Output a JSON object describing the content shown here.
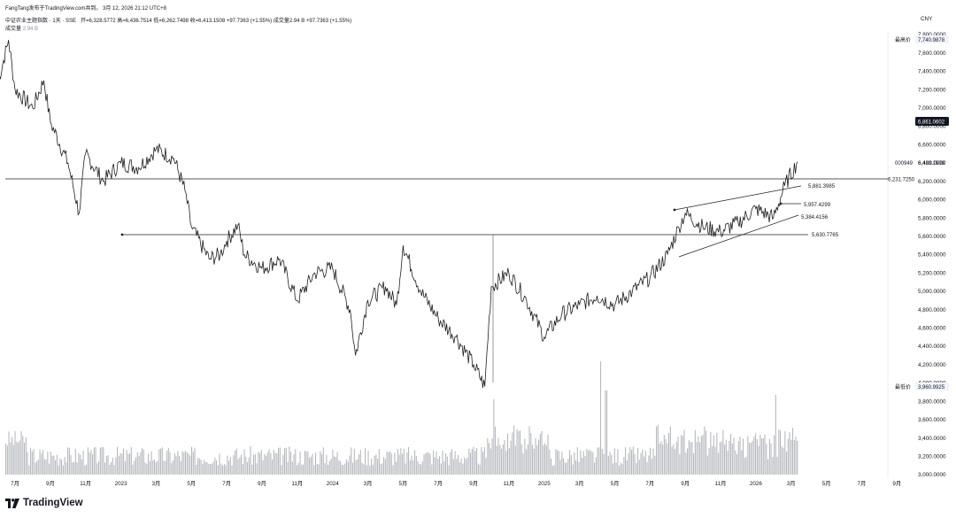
{
  "header": {
    "author_line": "FangTang发布于TradingView.com共到。 3月 12, 2026 21:12 UTC+8",
    "symbol_line": "中证农业主题指数 · 1天 · SSE",
    "ohlc_line": "开=6,328.5772  高=6,436.7514  低=6,262.7498  收=6,413.1508  +97.7363 (+1.55%)  成交量2.94 B  +97.7363 (+1.55%)",
    "volume_label": "成交量",
    "volume_value": "2.94 B"
  },
  "axis": {
    "currency": "CNY",
    "highest_label": "最高价",
    "highest_value": "7,740.9878",
    "lowest_label": "最低价",
    "lowest_value": "3,960.9925",
    "symbol_code": "000949",
    "last_price": "6,413.1508",
    "cursor_value": "6,861.0602"
  },
  "annotations": {
    "hline_upper": "6,231.7250",
    "hline_lower": "5,630.7765",
    "channel_top": "5,881.3985",
    "channel_mid": "5,957.4299",
    "channel_bottom": "5,384.4156"
  },
  "footer": {
    "brand": "TradingView",
    "logo_icon": "tradingview-logo-icon"
  },
  "chart_data": {
    "type": "line",
    "title": "中证农业主题指数",
    "yticks": [
      "3,000.0000",
      "3,200.0000",
      "3,400.0000",
      "3,600.0000",
      "3,800.0000",
      "4,000.0000",
      "4,200.0000",
      "4,400.0000",
      "4,600.0000",
      "4,800.0000",
      "5,000.0000",
      "5,200.0000",
      "5,400.0000",
      "5,600.0000",
      "5,800.0000",
      "6,000.0000",
      "6,200.0000",
      "6,400.0000",
      "6,600.0000",
      "6,800.0000",
      "7,000.0000",
      "7,200.0000",
      "7,400.0000",
      "7,600.0000",
      "7,800.0000"
    ],
    "xticks": [
      "7月",
      "9月",
      "11月",
      "2023",
      "3月",
      "5月",
      "7月",
      "9月",
      "11月",
      "2024",
      "3月",
      "5月",
      "7月",
      "9月",
      "11月",
      "2025",
      "3月",
      "5月",
      "7月",
      "9月",
      "11月",
      "2026",
      "3月",
      "5月",
      "7月",
      "9月"
    ],
    "ylim": [
      3000,
      7800
    ],
    "price_series": {
      "name": "000949",
      "points": [
        [
          "2022-06",
          7250
        ],
        [
          "2022-06-20",
          7740
        ],
        [
          "2022-07",
          7200
        ],
        [
          "2022-08",
          7000
        ],
        [
          "2022-08-20",
          7300
        ],
        [
          "2022-09",
          6850
        ],
        [
          "2022-10",
          6400
        ],
        [
          "2022-10-20",
          5850
        ],
        [
          "2022-11",
          6500
        ],
        [
          "2022-12",
          6200
        ],
        [
          "2023-01",
          6400
        ],
        [
          "2023-02",
          6350
        ],
        [
          "2023-03",
          6550
        ],
        [
          "2023-04",
          6450
        ],
        [
          "2023-04-20",
          6100
        ],
        [
          "2023-05",
          5700
        ],
        [
          "2023-06",
          5350
        ],
        [
          "2023-06-20",
          5400
        ],
        [
          "2023-07",
          5550
        ],
        [
          "2023-07-20",
          5720
        ],
        [
          "2023-08",
          5400
        ],
        [
          "2023-09",
          5250
        ],
        [
          "2023-10",
          5350
        ],
        [
          "2023-11",
          4900
        ],
        [
          "2023-12",
          5200
        ],
        [
          "2024-01",
          5250
        ],
        [
          "2024-02",
          4800
        ],
        [
          "2024-02-10",
          4300
        ],
        [
          "2024-03",
          4900
        ],
        [
          "2024-04",
          5050
        ],
        [
          "2024-04-20",
          4850
        ],
        [
          "2024-05",
          5500
        ],
        [
          "2024-06",
          5000
        ],
        [
          "2024-07",
          4700
        ],
        [
          "2024-08",
          4500
        ],
        [
          "2024-09",
          4200
        ],
        [
          "2024-09-20",
          3960
        ],
        [
          "2024-10",
          5050
        ],
        [
          "2024-11",
          5200
        ],
        [
          "2024-12",
          4900
        ],
        [
          "2025-01",
          4500
        ],
        [
          "2025-02",
          4750
        ],
        [
          "2025-03",
          4850
        ],
        [
          "2025-04",
          4950
        ],
        [
          "2025-05",
          4850
        ],
        [
          "2025-06",
          5000
        ],
        [
          "2025-07",
          5150
        ],
        [
          "2025-08",
          5400
        ],
        [
          "2025-08-20",
          5700
        ],
        [
          "2025-09",
          5850
        ],
        [
          "2025-10",
          5700
        ],
        [
          "2025-11",
          5650
        ],
        [
          "2025-12",
          5750
        ],
        [
          "2026-01",
          5900
        ],
        [
          "2026-02",
          5800
        ],
        [
          "2026-02-20",
          6150
        ],
        [
          "2026-03-12",
          6413.15
        ]
      ]
    },
    "volume_series": {
      "name": "成交量",
      "unit": "B",
      "last": 2.94
    }
  }
}
